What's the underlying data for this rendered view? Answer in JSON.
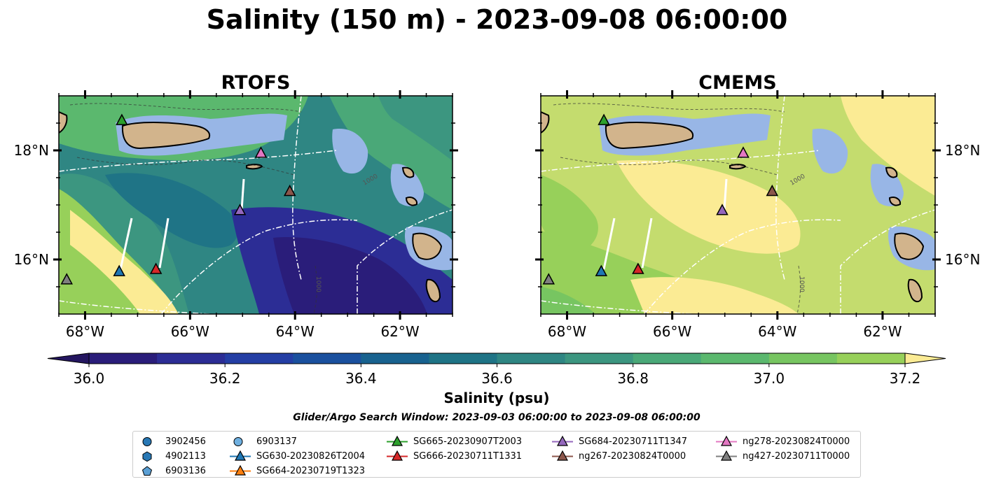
{
  "figure": {
    "title": "Salinity (150 m) - 2023-09-08 06:00:00",
    "colorbar_label": "Salinity (psu)",
    "search_window": "Glider/Argo Search Window: 2023-09-03 06:00:00 to 2023-09-08 06:00:00"
  },
  "chart_data": [
    {
      "type": "heatmap",
      "title": "RTOFS",
      "x_ticks": [
        "68°W",
        "66°W",
        "64°W",
        "62°W"
      ],
      "y_ticks": [
        "18°N",
        "16°N"
      ],
      "xlim": [
        -68.5,
        -61.0
      ],
      "ylim": [
        15.0,
        19.0
      ],
      "isobath_labels": [
        "1000",
        "1000"
      ],
      "markers": [
        {
          "name": "SG665-20230907T2003",
          "lon": -67.3,
          "lat": 18.55,
          "color": "#2ca02c"
        },
        {
          "name": "ng278-20230824T0000",
          "lon": -64.65,
          "lat": 17.95,
          "color": "#e377c2"
        },
        {
          "name": "ng267-20230824T0000",
          "lon": -64.1,
          "lat": 17.25,
          "color": "#8c564b"
        },
        {
          "name": "SG684-20230711T1347",
          "lon": -65.05,
          "lat": 16.9,
          "color": "#9467bd"
        },
        {
          "name": "SG630-20230826T2004",
          "lon": -67.35,
          "lat": 15.78,
          "color": "#1f77b4"
        },
        {
          "name": "SG666-20230711T1331",
          "lon": -66.65,
          "lat": 15.82,
          "color": "#d62728"
        },
        {
          "name": "ng427-20230711T0000",
          "lon": -68.35,
          "lat": 15.63,
          "color": "#7f7f7f"
        }
      ]
    },
    {
      "type": "heatmap",
      "title": "CMEMS",
      "x_ticks": [
        "68°W",
        "66°W",
        "64°W",
        "62°W"
      ],
      "y_ticks": [
        "18°N",
        "16°N"
      ],
      "xlim": [
        -68.5,
        -61.0
      ],
      "ylim": [
        15.0,
        19.0
      ],
      "isobath_labels": [
        "1000",
        "1000"
      ],
      "markers": [
        {
          "name": "SG665-20230907T2003",
          "lon": -67.3,
          "lat": 18.55,
          "color": "#2ca02c"
        },
        {
          "name": "ng278-20230824T0000",
          "lon": -64.65,
          "lat": 17.95,
          "color": "#e377c2"
        },
        {
          "name": "ng267-20230824T0000",
          "lon": -64.1,
          "lat": 17.25,
          "color": "#8c564b"
        },
        {
          "name": "SG684-20230711T1347",
          "lon": -65.05,
          "lat": 16.9,
          "color": "#9467bd"
        },
        {
          "name": "SG630-20230826T2004",
          "lon": -67.35,
          "lat": 15.78,
          "color": "#1f77b4"
        },
        {
          "name": "SG666-20230711T1331",
          "lon": -66.65,
          "lat": 15.82,
          "color": "#d62728"
        },
        {
          "name": "ng427-20230711T0000",
          "lon": -68.35,
          "lat": 15.63,
          "color": "#7f7f7f"
        }
      ]
    }
  ],
  "colorbar": {
    "ticks": [
      "36.0",
      "36.2",
      "36.4",
      "36.6",
      "36.8",
      "37.0",
      "37.2"
    ],
    "colors": [
      "#2a1d7a",
      "#2c2d95",
      "#243ea4",
      "#1a509e",
      "#18628f",
      "#1f7486",
      "#2f8683",
      "#3c9680",
      "#4aa878",
      "#5bb86e",
      "#77c561",
      "#97d05a",
      "#c4dc6e",
      "#fbeb94"
    ],
    "over_color": "#fbeb94",
    "under_color": "#241660"
  },
  "legend": {
    "columns": [
      [
        {
          "label": "3902456",
          "kind": "circle",
          "color": "#2878b5"
        },
        {
          "label": "4902113",
          "kind": "hexagon",
          "color": "#2878b5"
        },
        {
          "label": "6903136",
          "kind": "pentagon",
          "color": "#5a9fd4"
        }
      ],
      [
        {
          "label": "6903137",
          "kind": "circle",
          "color": "#6fb0e0"
        },
        {
          "label": "SG630-20230826T2004",
          "kind": "triangle-line",
          "color": "#1f77b4"
        },
        {
          "label": "SG664-20230719T1323",
          "kind": "triangle-line",
          "color": "#ff7f0e"
        }
      ],
      [
        {
          "label": "SG665-20230907T2003",
          "kind": "triangle-line",
          "color": "#2ca02c"
        },
        {
          "label": "SG666-20230711T1331",
          "kind": "triangle-line",
          "color": "#d62728"
        }
      ],
      [
        {
          "label": "SG684-20230711T1347",
          "kind": "triangle-line",
          "color": "#9467bd"
        },
        {
          "label": "ng267-20230824T0000",
          "kind": "triangle-line",
          "color": "#8c564b"
        }
      ],
      [
        {
          "label": "ng278-20230824T0000",
          "kind": "triangle-line",
          "color": "#e377c2"
        },
        {
          "label": "ng427-20230711T0000",
          "kind": "triangle-line",
          "color": "#7f7f7f"
        }
      ]
    ]
  }
}
